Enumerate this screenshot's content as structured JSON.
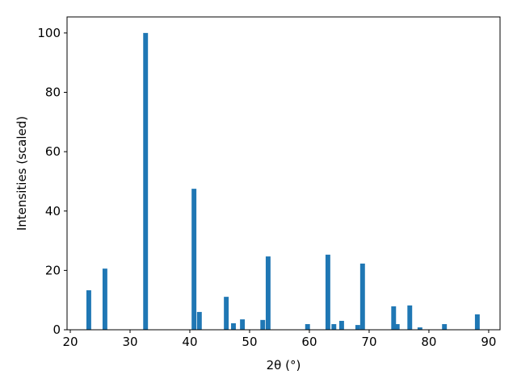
{
  "chart_data": {
    "type": "bar",
    "x_label": "2θ (°)",
    "y_label": "Intensities (scaled)",
    "x": [
      23.1,
      25.8,
      32.6,
      40.7,
      41.6,
      46.1,
      47.3,
      48.8,
      52.2,
      53.1,
      59.7,
      63.1,
      64.1,
      65.4,
      68.1,
      68.9,
      74.1,
      74.7,
      76.8,
      78.5,
      82.6,
      88.1
    ],
    "values": [
      13.3,
      20.6,
      100,
      47.5,
      6.0,
      11.1,
      2.2,
      3.5,
      3.3,
      24.7,
      1.9,
      25.3,
      1.9,
      3.0,
      1.6,
      22.3,
      7.9,
      1.9,
      8.2,
      0.8,
      1.9,
      5.2
    ],
    "bar_width": 0.8,
    "color": "#1f77b4",
    "xlim": [
      19.46,
      91.9
    ],
    "xticks": [
      20,
      30,
      40,
      50,
      60,
      70,
      80,
      90
    ],
    "ylim": [
      0,
      105.4
    ],
    "yticks": [
      0,
      20,
      40,
      60,
      80,
      100
    ],
    "grid": false
  }
}
